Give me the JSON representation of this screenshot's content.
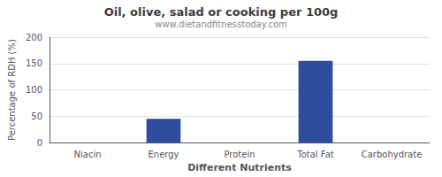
{
  "chart_data": {
    "type": "bar",
    "title": "Oil, olive, salad or cooking per 100g",
    "subtitle": "www.dietandfitnesstoday.com",
    "xlabel": "Different Nutrients",
    "ylabel": "Percentage of RDH (%)",
    "categories": [
      "Niacin",
      "Energy",
      "Protein",
      "Total Fat",
      "Carbohydrate"
    ],
    "values": [
      0,
      45,
      0,
      155,
      0
    ],
    "color": "#2e4d9e",
    "ylim": [
      0,
      200
    ],
    "yticks": [
      0,
      50,
      100,
      150,
      200
    ],
    "grid": true
  }
}
